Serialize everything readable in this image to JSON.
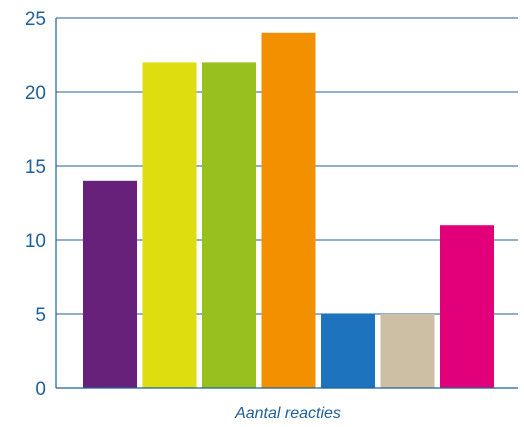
{
  "chart_data": {
    "type": "bar",
    "xlabel": "Aantal reacties",
    "ylabel": "",
    "ylim": [
      0,
      25
    ],
    "yticks": [
      0,
      5,
      10,
      15,
      20,
      25
    ],
    "grid": true,
    "legend": "none",
    "values": [
      14,
      22,
      22,
      24,
      5,
      5,
      11
    ],
    "colors": [
      "#68217a",
      "#dddd10",
      "#98c01e",
      "#f29000",
      "#1e73be",
      "#cdbfa3",
      "#e2007a"
    ]
  },
  "style": {
    "axis_color": "#1f5f9a",
    "grid_color": "#1f5f9a",
    "text_color": "#1f5f9a"
  }
}
